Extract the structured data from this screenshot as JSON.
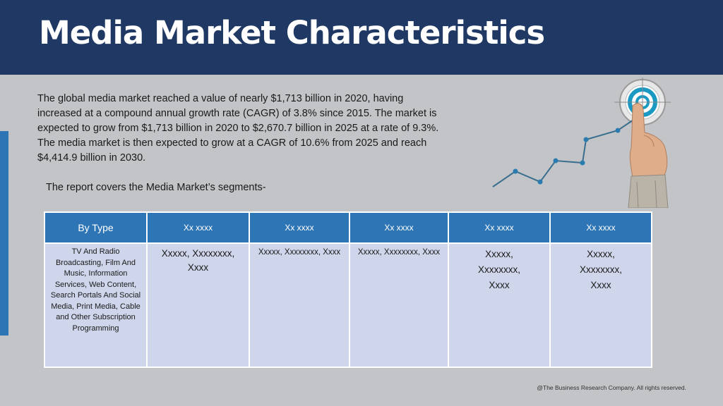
{
  "slide": {
    "title": "Media Market Characteristics",
    "intro": "The global media market reached a value of nearly $1,713 billion in 2020, having increased at a compound annual growth rate (CAGR) of 3.8% since 2015. The market is expected to grow from $1,713 billion in 2020 to $2,670.7 billion in 2025 at a rate of 9.3%. The media market is then expected to grow at a CAGR of 10.6% from 2025 and reach $4,414.9 billion in 2030.",
    "segments_note": "The report covers the Media Market’s segments-",
    "footer": "@The Business Research Company. All rights reserved."
  },
  "graphic": {
    "icon": "growth-chart-finger-target-icon",
    "colors": {
      "line": "#3a6e8f",
      "target": "#1a9ac2"
    }
  },
  "table": {
    "headers": [
      "By Type",
      "Xx xxxx",
      "Xx xxxx",
      "Xx xxxx",
      "Xx xxxx",
      "Xx xxxx"
    ],
    "cells": [
      "TV And Radio Broadcasting, Film And Music, Information Services, Web Content, Search Portals And Social Media, Print Media, Cable and Other Subscription Programming",
      "Xxxxx, Xxxxxxxx, Xxxx",
      "Xxxxx, Xxxxxxxx, Xxxx",
      "Xxxxx, Xxxxxxxx, Xxxx",
      "Xxxxx, Xxxxxxxx, Xxxx",
      "Xxxxx, Xxxxxxxx, Xxxx"
    ]
  },
  "colors": {
    "header_bg": "#1f3864",
    "table_header_bg": "#2e75b6",
    "table_cell_bg": "#cfd5ea",
    "slide_bg": "#c2c4c7"
  }
}
